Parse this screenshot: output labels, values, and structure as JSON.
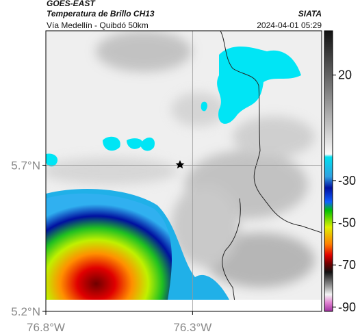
{
  "header": {
    "title": "GOES-EAST",
    "subtitle": "Temperatura de Brillo CH13",
    "source": "SIATA",
    "route": "Vía Medellín - Quibdó 50km",
    "timestamp": "2024-04-01 05:29"
  },
  "map": {
    "lon_lim": [
      -76.8,
      -75.86
    ],
    "lat_lim": [
      5.2,
      6.16
    ],
    "lon_ticks": [
      {
        "value": -76.8,
        "label": "76.8°W"
      },
      {
        "value": -76.3,
        "label": "76.3°W"
      }
    ],
    "lat_ticks": [
      {
        "value": 5.7,
        "label": "5.7°N"
      },
      {
        "value": 5.2,
        "label": "5.2°N"
      }
    ],
    "grid": true
  },
  "colorbar": {
    "lim": [
      -92,
      41
    ],
    "ticks": [
      20,
      -30,
      -50,
      -70,
      -90
    ]
  }
}
